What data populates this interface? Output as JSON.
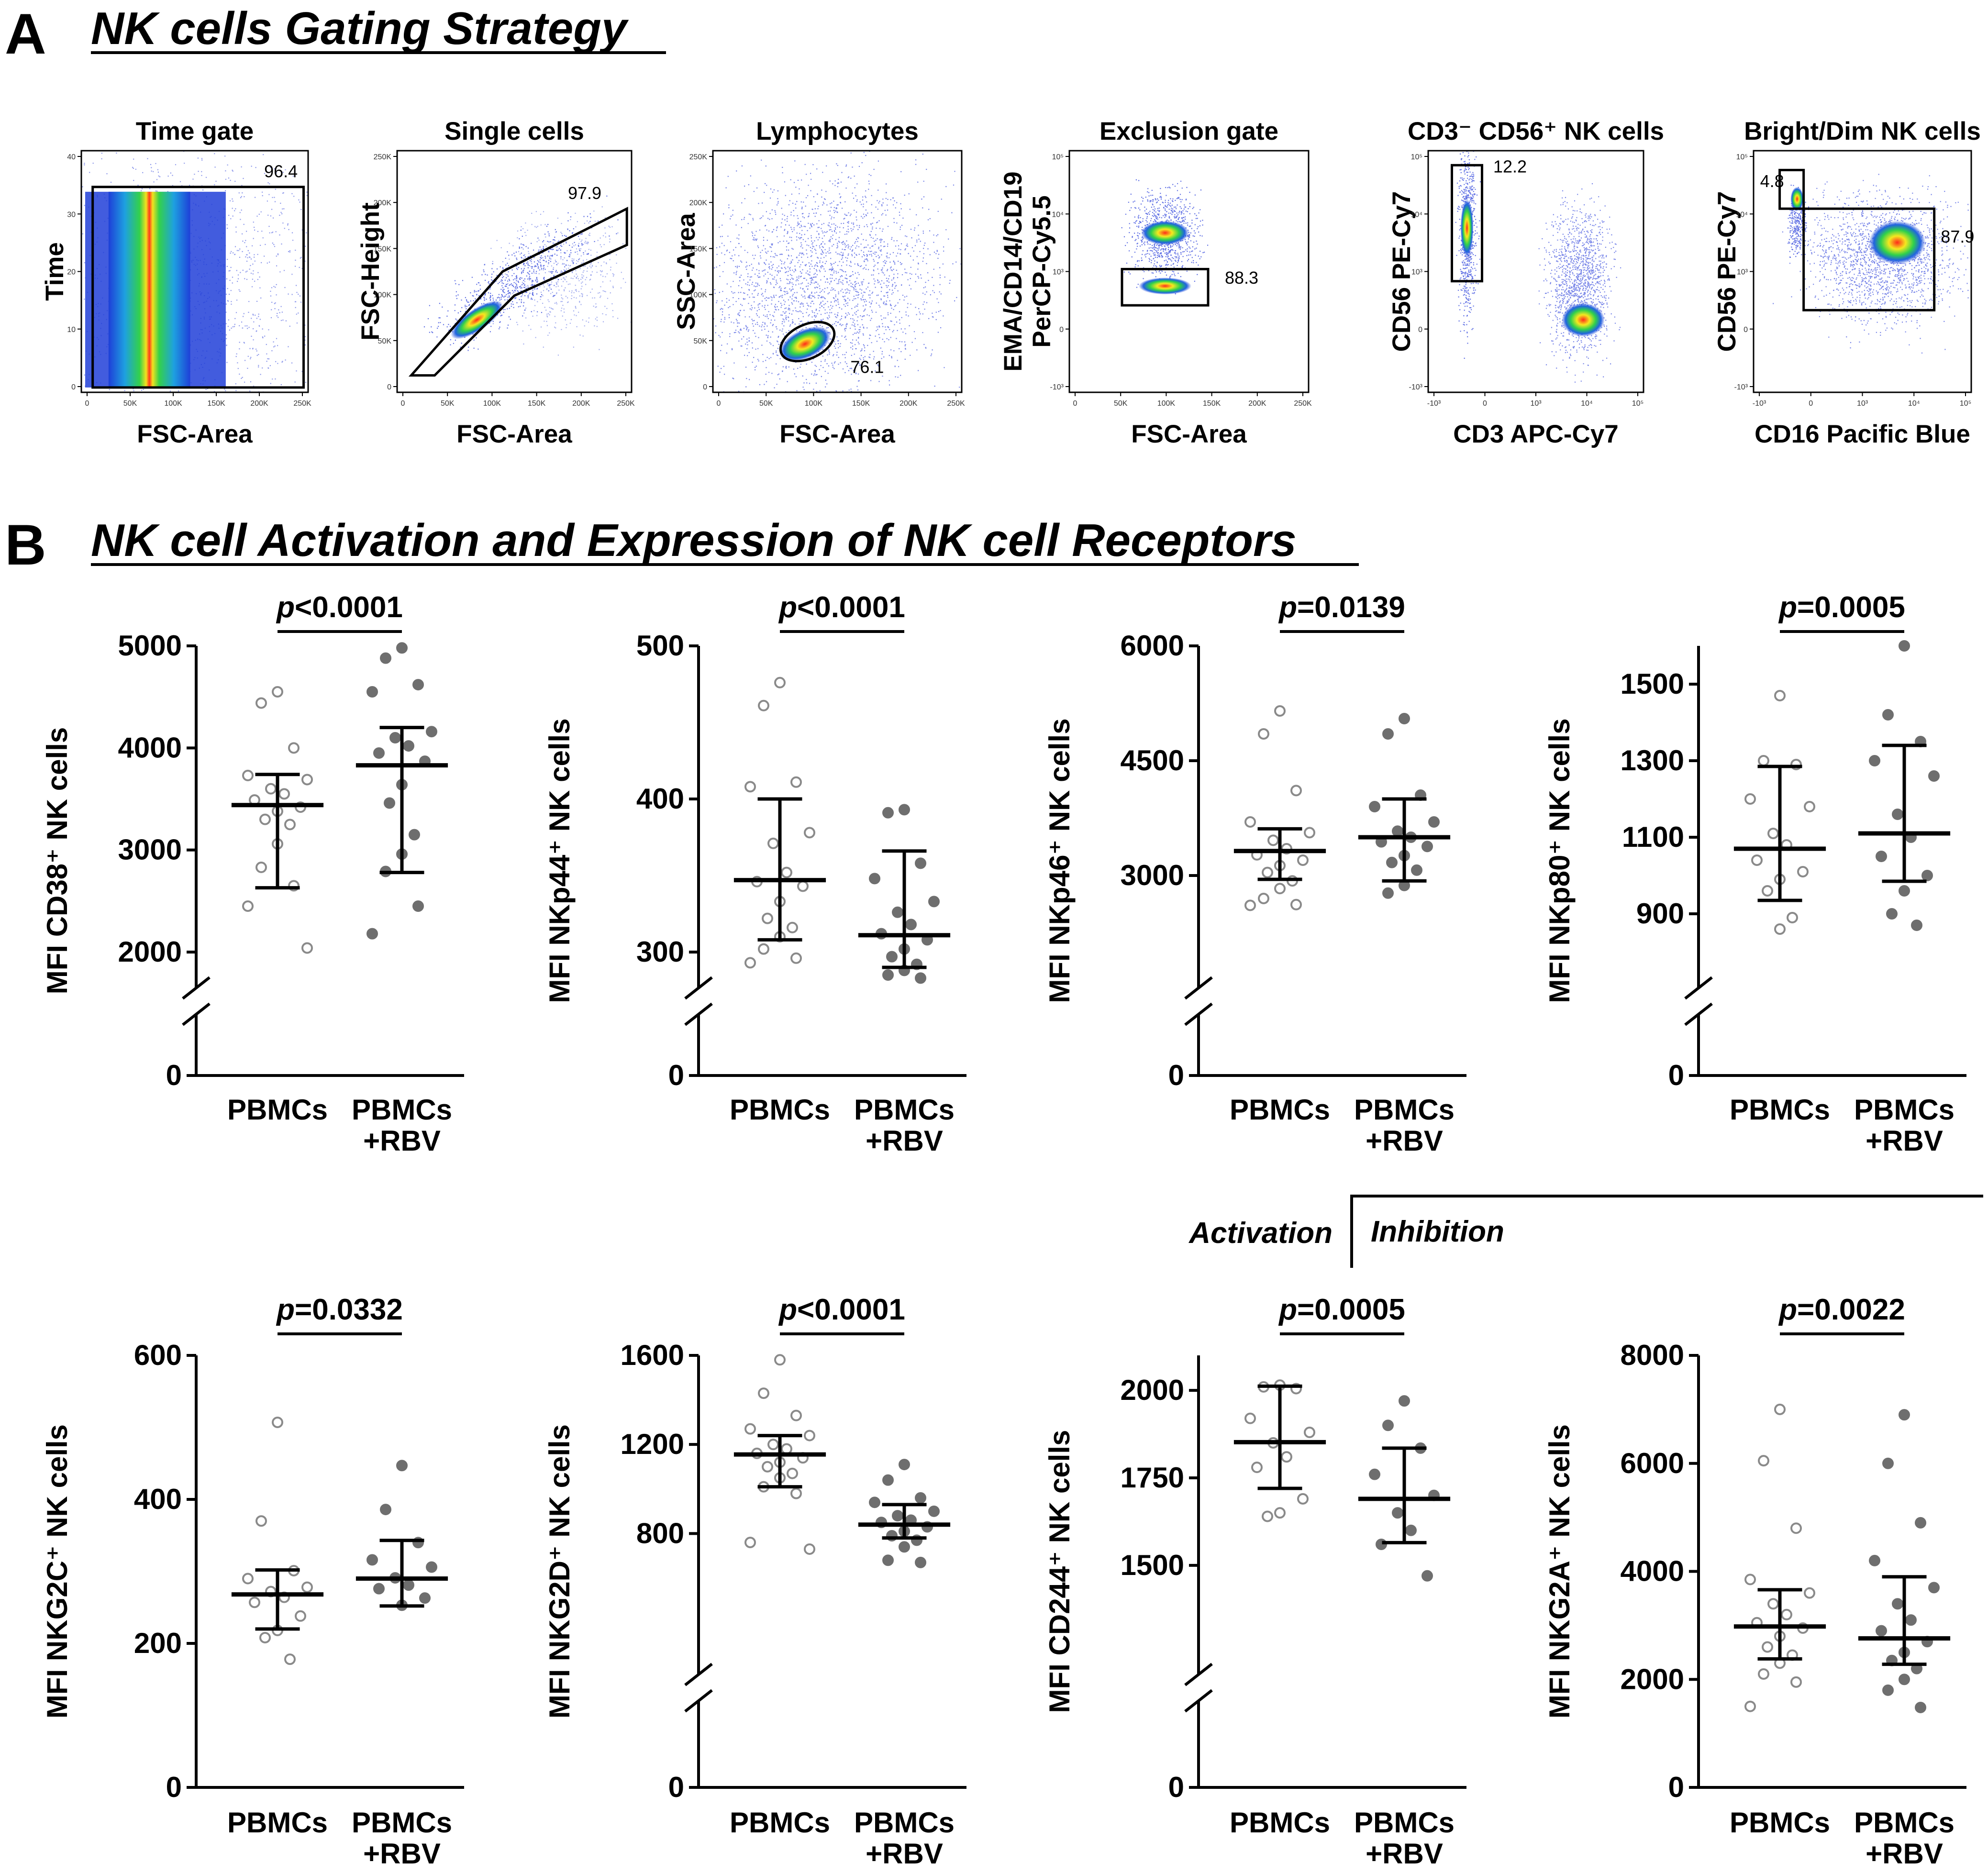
{
  "panel_a": {
    "letter": "A",
    "title": "NK cells Gating Strategy",
    "plots": [
      {
        "title": "Time gate",
        "xlabel": "FSC-Area",
        "ylabel": [
          "Time"
        ],
        "gate_value": "96.4",
        "xticks": [
          "0",
          "50K",
          "100K",
          "150K",
          "200K",
          "250K"
        ],
        "yticks": [
          "0",
          "10",
          "20",
          "30",
          "40"
        ]
      },
      {
        "title": "Single cells",
        "xlabel": "FSC-Area",
        "ylabel": [
          "FSC-Height"
        ],
        "gate_value": "97.9",
        "xticks": [
          "0",
          "50K",
          "100K",
          "150K",
          "200K",
          "250K"
        ],
        "yticks": [
          "0",
          "50K",
          "100K",
          "150K",
          "200K",
          "250K"
        ]
      },
      {
        "title": "Lymphocytes",
        "xlabel": "FSC-Area",
        "ylabel": [
          "SSC-Area"
        ],
        "gate_value": "76.1",
        "xticks": [
          "0",
          "50K",
          "100K",
          "150K",
          "200K",
          "250K"
        ],
        "yticks": [
          "0",
          "50K",
          "100K",
          "150K",
          "200K",
          "250K"
        ]
      },
      {
        "title": "Exclusion gate",
        "xlabel": "FSC-Area",
        "ylabel": [
          "EMA/CD14/CD19",
          "PerCP-Cy5.5"
        ],
        "gate_value": "88.3",
        "xticks": [
          "0",
          "50K",
          "100K",
          "150K",
          "200K",
          "250K"
        ],
        "yticks": [
          "-10³",
          "0",
          "10³",
          "10⁴",
          "10⁵"
        ]
      },
      {
        "title": "CD3⁻ CD56⁺ NK cells",
        "xlabel": "CD3 APC-Cy7",
        "ylabel": [
          "CD56 PE-Cy7"
        ],
        "gate_value": "12.2",
        "xticks": [
          "-10³",
          "0",
          "10³",
          "10⁴",
          "10⁵"
        ],
        "yticks": [
          "-10³",
          "0",
          "10³",
          "10⁴",
          "10⁵"
        ]
      },
      {
        "title": "Bright/Dim NK cells",
        "xlabel": "CD16 Pacific Blue",
        "ylabel": [
          "CD56 PE-Cy7"
        ],
        "gate_value": "4.8",
        "gate_value_2": "87.9",
        "xticks": [
          "-10³",
          "0",
          "10³",
          "10⁴",
          "10⁵"
        ],
        "yticks": [
          "-10³",
          "0",
          "10³",
          "10⁴",
          "10⁵"
        ]
      }
    ]
  },
  "panel_b": {
    "letter": "B",
    "title": "NK cell Activation and Expression of NK cell Receptors",
    "activation_label": "Activation",
    "inhibition_label": "Inhibition",
    "categories": [
      "PBMCs",
      "PBMCs",
      "+RBV"
    ],
    "category_labels": {
      "c1": "PBMCs",
      "c2_line1": "PBMCs",
      "c2_line2": "+RBV"
    }
  },
  "colors": {
    "open_marker": "#8a8a8a",
    "filled_marker": "#6e6e6e",
    "axis": "#000000"
  },
  "chart_data": [
    {
      "type": "scatter",
      "ylabel": "MFI CD38⁺ NK cells",
      "pvalue": "p<0.0001",
      "p_prefix": "p",
      "p_rest": "<0.0001",
      "yticks": [
        "2000",
        "3000",
        "4000",
        "5000"
      ],
      "ylim": [
        2000,
        5000
      ],
      "axis_break": true,
      "zero_label": "0",
      "categories": [
        "PBMCs",
        "PBMCs +RBV"
      ],
      "series": [
        {
          "name": "PBMCs",
          "mean": 3440,
          "sd_low": 2630,
          "sd_high": 3740,
          "values": [
            4550,
            4440,
            4000,
            3730,
            3690,
            3600,
            3550,
            3490,
            3420,
            3380,
            3300,
            3250,
            3060,
            2830,
            2650,
            2450,
            2040
          ]
        },
        {
          "name": "PBMCs +RBV",
          "mean": 3830,
          "sd_low": 2780,
          "sd_high": 4200,
          "values": [
            4980,
            4880,
            4620,
            4550,
            4160,
            4100,
            4020,
            3950,
            3870,
            3640,
            3460,
            3150,
            2960,
            2790,
            2450,
            2180
          ]
        }
      ]
    },
    {
      "type": "scatter",
      "ylabel": "MFI NKp44⁺ NK cells",
      "pvalue": "p<0.0001",
      "p_prefix": "p",
      "p_rest": "<0.0001",
      "yticks": [
        "300",
        "400",
        "500"
      ],
      "ylim": [
        300,
        500
      ],
      "axis_break": true,
      "zero_label": "0",
      "categories": [
        "PBMCs",
        "PBMCs +RBV"
      ],
      "series": [
        {
          "name": "PBMCs",
          "mean": 347,
          "sd_low": 308,
          "sd_high": 400,
          "values": [
            476,
            461,
            411,
            408,
            378,
            371,
            352,
            346,
            343,
            333,
            322,
            316,
            310,
            302,
            296,
            293
          ]
        },
        {
          "name": "PBMCs +RBV",
          "mean": 311,
          "sd_low": 290,
          "sd_high": 366,
          "values": [
            393,
            391,
            358,
            348,
            333,
            326,
            318,
            312,
            308,
            302,
            297,
            292,
            288,
            285,
            283
          ]
        }
      ]
    },
    {
      "type": "scatter",
      "ylabel": "MFI NKp46⁺ NK cells",
      "pvalue": "p=0.0139",
      "p_prefix": "p",
      "p_rest": "=0.0139",
      "yticks": [
        "3000",
        "4500",
        "6000"
      ],
      "ylim": [
        2000,
        6000
      ],
      "axis_break": true,
      "zero_label": "0",
      "categories": [
        "PBMCs",
        "PBMCs +RBV"
      ],
      "series": [
        {
          "name": "PBMCs",
          "mean": 3320,
          "sd_low": 2950,
          "sd_high": 3610,
          "values": [
            5150,
            4850,
            4110,
            3700,
            3560,
            3460,
            3350,
            3270,
            3200,
            3130,
            3040,
            2930,
            2830,
            2700,
            2620,
            2610
          ]
        },
        {
          "name": "PBMCs +RBV",
          "mean": 3500,
          "sd_low": 2930,
          "sd_high": 4000,
          "values": [
            5050,
            4850,
            4050,
            3900,
            3700,
            3580,
            3500,
            3440,
            3380,
            3260,
            3170,
            3070,
            2870,
            2770
          ]
        }
      ]
    },
    {
      "type": "scatter",
      "ylabel": "MFI NKp80⁺ NK cells",
      "pvalue": "p=0.0005",
      "p_prefix": "p",
      "p_rest": "=0.0005",
      "yticks": [
        "900",
        "1100",
        "1300",
        "1500"
      ],
      "ylim": [
        800,
        1600
      ],
      "axis_break": true,
      "zero_label": "0",
      "categories": [
        "PBMCs",
        "PBMCs +RBV"
      ],
      "series": [
        {
          "name": "PBMCs",
          "mean": 1070,
          "sd_low": 935,
          "sd_high": 1285,
          "values": [
            1470,
            1300,
            1290,
            1200,
            1180,
            1110,
            1080,
            1040,
            1010,
            990,
            960,
            890,
            860
          ]
        },
        {
          "name": "PBMCs +RBV",
          "mean": 1110,
          "sd_low": 985,
          "sd_high": 1340,
          "values": [
            1600,
            1420,
            1350,
            1300,
            1260,
            1160,
            1100,
            1050,
            1000,
            960,
            900,
            870
          ]
        }
      ]
    },
    {
      "type": "scatter",
      "ylabel": "MFI NKG2C⁺ NK cells",
      "pvalue": "p=0.0332",
      "p_prefix": "p",
      "p_rest": "=0.0332",
      "yticks": [
        "200",
        "400",
        "600"
      ],
      "ylim": [
        0,
        600
      ],
      "axis_break": false,
      "zero_label": "0",
      "categories": [
        "PBMCs",
        "PBMCs +RBV"
      ],
      "series": [
        {
          "name": "PBMCs",
          "mean": 268,
          "sd_low": 220,
          "sd_high": 302,
          "values": [
            507,
            370,
            301,
            290,
            278,
            272,
            264,
            257,
            238,
            218,
            208,
            178
          ]
        },
        {
          "name": "PBMCs +RBV",
          "mean": 290,
          "sd_low": 252,
          "sd_high": 343,
          "values": [
            447,
            386,
            340,
            316,
            306,
            291,
            281,
            276,
            263,
            253
          ]
        }
      ]
    },
    {
      "type": "scatter",
      "ylabel": "MFI NKG2D⁺ NK cells",
      "pvalue": "p<0.0001",
      "p_prefix": "p",
      "p_rest": "<0.0001",
      "yticks": [
        "800",
        "1200",
        "1600"
      ],
      "ylim": [
        500,
        1600
      ],
      "axis_break": true,
      "zero_label": "0",
      "categories": [
        "PBMCs",
        "PBMCs +RBV"
      ],
      "series": [
        {
          "name": "PBMCs",
          "mean": 1155,
          "sd_low": 1010,
          "sd_high": 1240,
          "values": [
            1580,
            1430,
            1330,
            1270,
            1240,
            1200,
            1180,
            1160,
            1140,
            1120,
            1100,
            1070,
            1050,
            1010,
            980,
            760,
            730
          ]
        },
        {
          "name": "PBMCs +RBV",
          "mean": 840,
          "sd_low": 780,
          "sd_high": 930,
          "values": [
            1110,
            1040,
            960,
            940,
            900,
            880,
            860,
            850,
            830,
            810,
            790,
            770,
            740,
            680,
            670
          ]
        }
      ]
    },
    {
      "type": "scatter",
      "ylabel": "MFI CD244⁺ NK cells",
      "pvalue": "p=0.0005",
      "p_prefix": "p",
      "p_rest": "=0.0005",
      "yticks": [
        "1500",
        "1750",
        "2000"
      ],
      "ylim": [
        1400,
        2100
      ],
      "axis_break": true,
      "zero_label": "0",
      "categories": [
        "PBMCs",
        "PBMCs +RBV"
      ],
      "series": [
        {
          "name": "PBMCs",
          "mean": 1852,
          "sd_low": 1720,
          "sd_high": 2012,
          "values": [
            2015,
            2010,
            2005,
            1920,
            1880,
            1850,
            1810,
            1780,
            1690,
            1650,
            1640
          ]
        },
        {
          "name": "PBMCs +RBV",
          "mean": 1690,
          "sd_low": 1565,
          "sd_high": 1835,
          "values": [
            1970,
            1900,
            1835,
            1760,
            1700,
            1650,
            1600,
            1560,
            1470
          ]
        }
      ]
    },
    {
      "type": "scatter",
      "ylabel": "MFI NKG2A⁺ NK cells",
      "pvalue": "p=0.0022",
      "p_prefix": "p",
      "p_rest": "=0.0022",
      "yticks": [
        "2000",
        "4000",
        "6000",
        "8000"
      ],
      "ylim": [
        0,
        8000
      ],
      "axis_break": false,
      "zero_label": "0",
      "categories": [
        "PBMCs",
        "PBMCs +RBV"
      ],
      "series": [
        {
          "name": "PBMCs",
          "mean": 2980,
          "sd_low": 2380,
          "sd_high": 3660,
          "values": [
            7000,
            6050,
            4800,
            3850,
            3600,
            3400,
            3200,
            3050,
            2950,
            2800,
            2600,
            2450,
            2300,
            2100,
            1950,
            1500
          ]
        },
        {
          "name": "PBMCs +RBV",
          "mean": 2760,
          "sd_low": 2280,
          "sd_high": 3900,
          "values": [
            6900,
            6000,
            4900,
            4200,
            3700,
            3400,
            3100,
            2900,
            2700,
            2500,
            2350,
            2200,
            2000,
            1800,
            1480
          ]
        }
      ]
    }
  ]
}
